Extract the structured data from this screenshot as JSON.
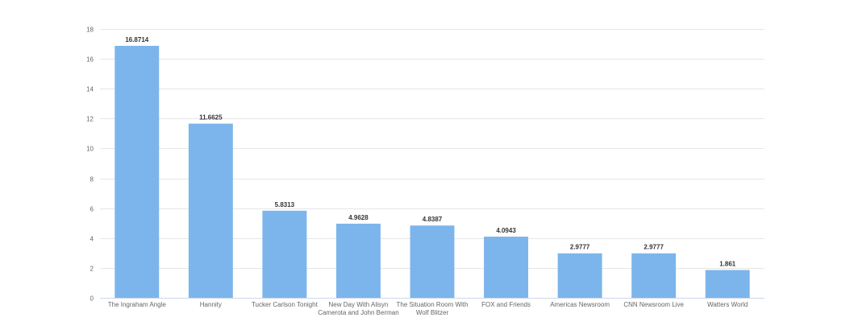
{
  "chart_data": {
    "type": "bar",
    "categories": [
      "The Ingraham Angle",
      "Hannity",
      "Tucker Carlson Tonight",
      "New Day With Alisyn Camerota and John Berman",
      "The Situation Room With Wolf Blitzer",
      "FOX and Friends",
      "Americas Newsroom",
      "CNN Newsroom Live",
      "Watters World"
    ],
    "category_lines": [
      [
        "The Ingraham Angle"
      ],
      [
        "Hannity"
      ],
      [
        "Tucker Carlson Tonight"
      ],
      [
        "New Day With Alisyn",
        "Camerota and John Berman"
      ],
      [
        "The Situation Room With",
        "Wolf Blitzer"
      ],
      [
        "FOX and Friends"
      ],
      [
        "Americas Newsroom"
      ],
      [
        "CNN Newsroom Live"
      ],
      [
        "Watters World"
      ]
    ],
    "values": [
      16.8714,
      11.6625,
      5.8313,
      4.9628,
      4.8387,
      4.0943,
      2.9777,
      2.9777,
      1.861
    ],
    "data_labels": [
      "16.8714",
      "11.6625",
      "5.8313",
      "4.9628",
      "4.8387",
      "4.0943",
      "2.9777",
      "2.9777",
      "1.861"
    ],
    "ylim": [
      0,
      18
    ],
    "yticks": [
      0,
      2,
      4,
      6,
      8,
      10,
      12,
      14,
      16,
      18
    ],
    "title": "",
    "xlabel": "",
    "ylabel": "",
    "grid": true,
    "bar_color": "#7cb5ec"
  }
}
